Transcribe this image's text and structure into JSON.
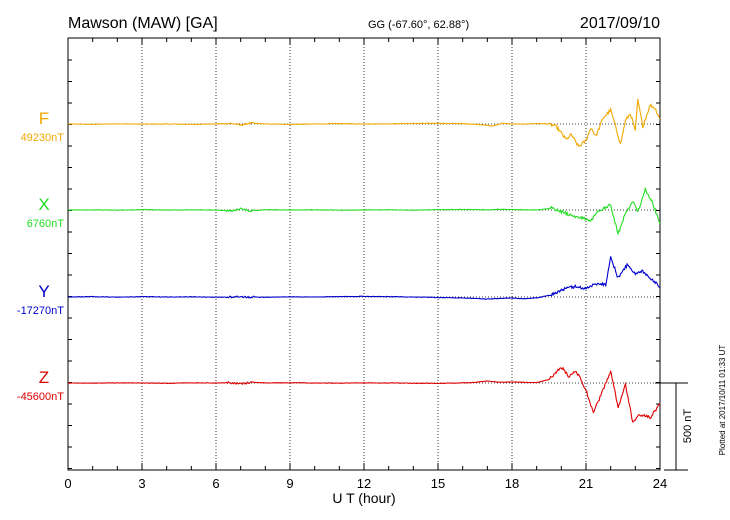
{
  "header": {
    "station": "Mawson (MAW)  [GA]",
    "coords": "GG (-67.60°,  62.88°)",
    "date": "2017/09/10"
  },
  "plotted_note": "Plotted at 2017/10/11 01:33 UT",
  "scale_label": "500 nT",
  "chart_data": {
    "type": "line",
    "title": "Mawson (MAW)  [GA]",
    "xlabel": "U T (hour)",
    "ylabel": "",
    "xlim": [
      0,
      24
    ],
    "x_ticks": [
      0,
      3,
      6,
      9,
      12,
      15,
      18,
      21,
      24
    ],
    "grid": "dotted vertical at each tick; dotted baseline per series",
    "scale_bar_nT": 500,
    "series": [
      {
        "name": "F",
        "baseline_label": "49230nT",
        "color": "#f0a800",
        "points": [
          [
            0,
            0
          ],
          [
            1,
            -2
          ],
          [
            2,
            1
          ],
          [
            3,
            -1
          ],
          [
            4,
            0
          ],
          [
            5,
            -2
          ],
          [
            6,
            0
          ],
          [
            6.6,
            3
          ],
          [
            7,
            -6
          ],
          [
            7.4,
            5
          ],
          [
            8,
            0
          ],
          [
            9,
            -2
          ],
          [
            10,
            0
          ],
          [
            11,
            2
          ],
          [
            12,
            0
          ],
          [
            13,
            1
          ],
          [
            14,
            3
          ],
          [
            15,
            4
          ],
          [
            16,
            2
          ],
          [
            16.8,
            -4
          ],
          [
            17.2,
            -12
          ],
          [
            17.6,
            4
          ],
          [
            18,
            0
          ],
          [
            18.5,
            -1
          ],
          [
            19,
            3
          ],
          [
            19.5,
            0
          ],
          [
            19.8,
            -15
          ],
          [
            20.2,
            -90
          ],
          [
            20.4,
            -60
          ],
          [
            20.7,
            -130
          ],
          [
            21,
            -95
          ],
          [
            21.2,
            -20
          ],
          [
            21.4,
            -70
          ],
          [
            21.7,
            35
          ],
          [
            22,
            80
          ],
          [
            22.2,
            -15
          ],
          [
            22.4,
            -115
          ],
          [
            22.6,
            20
          ],
          [
            22.8,
            60
          ],
          [
            23,
            -40
          ],
          [
            23.1,
            140
          ],
          [
            23.3,
            -15
          ],
          [
            23.6,
            110
          ],
          [
            23.8,
            90
          ],
          [
            24,
            30
          ]
        ]
      },
      {
        "name": "X",
        "baseline_label": "6760nT",
        "color": "#22dd22",
        "points": [
          [
            0,
            0
          ],
          [
            1,
            1
          ],
          [
            2,
            -1
          ],
          [
            3,
            2
          ],
          [
            4,
            0
          ],
          [
            5,
            1
          ],
          [
            6,
            0
          ],
          [
            6.6,
            -6
          ],
          [
            7,
            8
          ],
          [
            7.4,
            -5
          ],
          [
            8,
            2
          ],
          [
            9,
            0
          ],
          [
            10,
            1
          ],
          [
            11,
            -1
          ],
          [
            12,
            0
          ],
          [
            13,
            1
          ],
          [
            14,
            -1
          ],
          [
            15,
            2
          ],
          [
            16,
            3
          ],
          [
            17,
            1
          ],
          [
            17.5,
            4
          ],
          [
            18,
            2
          ],
          [
            19,
            0
          ],
          [
            19.6,
            10
          ],
          [
            20.3,
            -25
          ],
          [
            20.8,
            -45
          ],
          [
            21.2,
            -60
          ],
          [
            21.5,
            -10
          ],
          [
            22,
            30
          ],
          [
            22.3,
            -140
          ],
          [
            22.6,
            -20
          ],
          [
            22.9,
            50
          ],
          [
            23.1,
            -10
          ],
          [
            23.4,
            120
          ],
          [
            23.7,
            40
          ],
          [
            24,
            -80
          ]
        ]
      },
      {
        "name": "Y",
        "baseline_label": "-17270nT",
        "color": "#0000cc",
        "points": [
          [
            0,
            0
          ],
          [
            1,
            2
          ],
          [
            2,
            -1
          ],
          [
            3,
            2
          ],
          [
            4,
            0
          ],
          [
            5,
            1
          ],
          [
            6,
            -1
          ],
          [
            7,
            0
          ],
          [
            8,
            -1
          ],
          [
            9,
            1
          ],
          [
            10,
            0
          ],
          [
            11,
            2
          ],
          [
            12,
            4
          ],
          [
            13,
            2
          ],
          [
            14,
            0
          ],
          [
            15,
            -3
          ],
          [
            16,
            -5
          ],
          [
            17,
            -12
          ],
          [
            17.5,
            -8
          ],
          [
            18,
            -6
          ],
          [
            18.5,
            -10
          ],
          [
            19,
            -5
          ],
          [
            19.6,
            12
          ],
          [
            20,
            40
          ],
          [
            20.5,
            60
          ],
          [
            21,
            50
          ],
          [
            21.5,
            80
          ],
          [
            21.8,
            70
          ],
          [
            22,
            230
          ],
          [
            22.3,
            110
          ],
          [
            22.7,
            190
          ],
          [
            23,
            130
          ],
          [
            23.3,
            150
          ],
          [
            23.6,
            110
          ],
          [
            24,
            60
          ]
        ]
      },
      {
        "name": "Z",
        "baseline_label": "-45600nT",
        "color": "#dd0000",
        "points": [
          [
            0,
            0
          ],
          [
            1,
            -1
          ],
          [
            2,
            1
          ],
          [
            3,
            0
          ],
          [
            4,
            -1
          ],
          [
            5,
            1
          ],
          [
            6,
            0
          ],
          [
            6.5,
            3
          ],
          [
            7,
            -5
          ],
          [
            7.5,
            4
          ],
          [
            8,
            0
          ],
          [
            9,
            2
          ],
          [
            10,
            0
          ],
          [
            11,
            -1
          ],
          [
            12,
            1
          ],
          [
            13,
            0
          ],
          [
            14,
            -1
          ],
          [
            15,
            -2
          ],
          [
            16,
            1
          ],
          [
            16.5,
            3
          ],
          [
            17,
            12
          ],
          [
            17.5,
            4
          ],
          [
            18,
            6
          ],
          [
            19,
            2
          ],
          [
            19.5,
            20
          ],
          [
            20,
            90
          ],
          [
            20.3,
            40
          ],
          [
            20.6,
            70
          ],
          [
            21,
            -40
          ],
          [
            21.3,
            -170
          ],
          [
            21.6,
            -70
          ],
          [
            22,
            70
          ],
          [
            22.3,
            -140
          ],
          [
            22.6,
            -10
          ],
          [
            22.9,
            -230
          ],
          [
            23.2,
            -180
          ],
          [
            23.6,
            -200
          ],
          [
            24,
            -120
          ]
        ]
      }
    ]
  }
}
